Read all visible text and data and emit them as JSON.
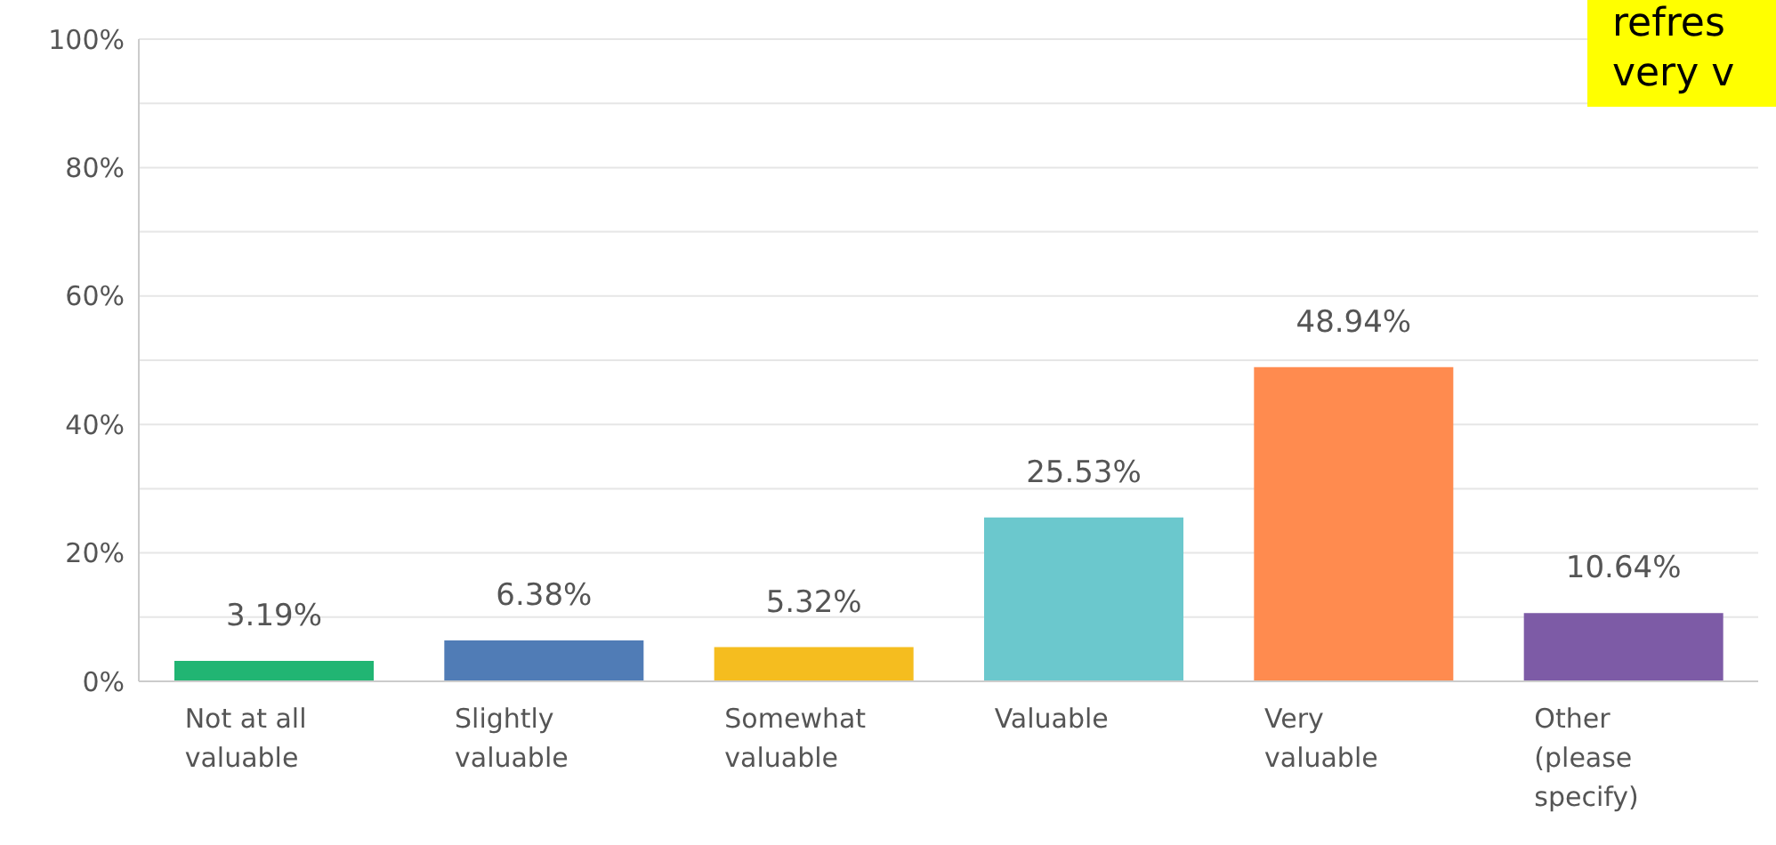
{
  "chart_data": {
    "type": "bar",
    "categories": [
      "Not at all valuable",
      "Slightly valuable",
      "Somewhat valuable",
      "Valuable",
      "Very valuable",
      "Other (please specify)"
    ],
    "values": [
      3.19,
      6.38,
      5.32,
      25.53,
      48.94,
      10.64
    ],
    "colors": [
      "#21b573",
      "#507cb6",
      "#f5bd1f",
      "#6bc8cd",
      "#ff8b4f",
      "#7d5ba6"
    ],
    "value_labels": [
      "3.19%",
      "6.38%",
      "5.32%",
      "25.53%",
      "48.94%",
      "10.64%"
    ],
    "ylim": [
      0,
      100
    ],
    "yticks": [
      {
        "value": 0,
        "label": "0%"
      },
      {
        "value": 10,
        "label": null
      },
      {
        "value": 20,
        "label": "20%"
      },
      {
        "value": 30,
        "label": null
      },
      {
        "value": 40,
        "label": "40%"
      },
      {
        "value": 50,
        "label": null
      },
      {
        "value": 60,
        "label": "60%"
      },
      {
        "value": 70,
        "label": null
      },
      {
        "value": 80,
        "label": "80%"
      },
      {
        "value": 90,
        "label": null
      },
      {
        "value": 100,
        "label": "100%"
      }
    ],
    "grid": "y",
    "annotations": [
      "refres\nvery v"
    ]
  }
}
